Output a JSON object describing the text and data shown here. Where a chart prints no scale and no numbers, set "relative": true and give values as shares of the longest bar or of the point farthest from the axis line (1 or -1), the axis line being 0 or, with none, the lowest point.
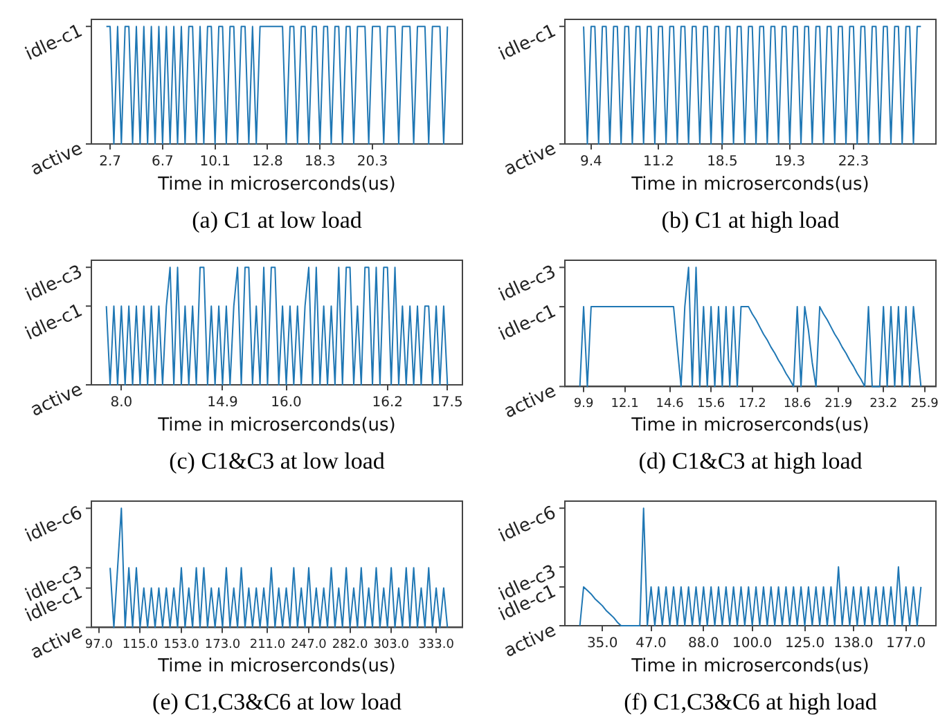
{
  "chart_data": [
    {
      "type": "line",
      "relative": true,
      "title": "(a) C1 at low load",
      "xlabel": "Time in microserconds(us)",
      "color": "#1f77b4",
      "annotations": [
        "active",
        "idle-c1"
      ],
      "categories": [
        null,
        null,
        null,
        null,
        null,
        "2.7",
        null,
        null,
        null,
        null,
        null,
        null,
        null,
        null,
        null,
        null,
        null,
        null,
        null,
        "6.7",
        null,
        null,
        null,
        null,
        null,
        null,
        null,
        null,
        null,
        null,
        null,
        null,
        null,
        "10.1",
        null,
        null,
        null,
        null,
        null,
        null,
        null,
        null,
        null,
        null,
        null,
        null,
        null,
        "12.8",
        null,
        null,
        null,
        null,
        null,
        null,
        null,
        null,
        null,
        null,
        null,
        null,
        null,
        "18.3",
        null,
        null,
        null,
        null,
        null,
        null,
        null,
        null,
        null,
        null,
        null,
        null,
        null,
        "20.3",
        null,
        null,
        null,
        null,
        null,
        null,
        null,
        null,
        null,
        null,
        null,
        null,
        null,
        null,
        null,
        null,
        null,
        null,
        null,
        null,
        null,
        null,
        null,
        null
      ],
      "values": [
        null,
        null,
        null,
        null,
        1,
        1,
        0,
        1,
        0,
        1,
        1,
        0,
        1,
        0,
        1,
        0,
        1,
        0,
        1,
        0,
        1,
        0,
        1,
        0,
        1,
        0,
        1,
        1,
        0,
        1,
        0,
        1,
        1,
        0,
        1,
        1,
        0,
        1,
        1,
        0,
        1,
        1,
        0,
        1,
        0,
        1,
        1,
        1,
        1,
        1,
        1,
        1,
        0,
        1,
        1,
        0,
        1,
        1,
        0,
        1,
        1,
        0,
        1,
        1,
        0,
        1,
        1,
        0,
        1,
        1,
        0,
        1,
        1,
        1,
        0,
        1,
        1,
        1,
        0,
        1,
        1,
        1,
        0,
        1,
        1,
        1,
        0,
        1,
        1,
        1,
        0,
        1,
        1,
        1,
        0,
        1,
        null,
        null,
        null,
        null
      ]
    },
    {
      "type": "line",
      "relative": true,
      "title": "(b) C1 at high load",
      "xlabel": "Time in microserconds(us)",
      "color": "#1f77b4",
      "annotations": [
        "active",
        "idle-c1"
      ],
      "categories": [
        null,
        null,
        null,
        null,
        null,
        null,
        null,
        "9.4",
        null,
        null,
        null,
        null,
        null,
        null,
        null,
        null,
        null,
        null,
        null,
        null,
        null,
        null,
        null,
        null,
        null,
        "11.2",
        null,
        null,
        null,
        null,
        null,
        null,
        null,
        null,
        null,
        null,
        null,
        null,
        null,
        null,
        null,
        null,
        "18.5",
        null,
        null,
        null,
        null,
        null,
        null,
        null,
        null,
        null,
        null,
        null,
        null,
        null,
        null,
        null,
        null,
        null,
        "19.3",
        null,
        null,
        null,
        null,
        null,
        null,
        null,
        null,
        null,
        null,
        null,
        null,
        null,
        null,
        null,
        null,
        "22.3",
        null,
        null,
        null,
        null,
        null,
        null,
        null,
        null,
        null,
        null,
        null,
        null,
        null,
        null,
        null,
        null,
        null,
        null,
        null,
        null,
        null,
        null
      ],
      "values": [
        null,
        null,
        null,
        null,
        null,
        1,
        0,
        1,
        1,
        0,
        1,
        1,
        0,
        1,
        1,
        0,
        1,
        1,
        0,
        1,
        1,
        0,
        1,
        1,
        0,
        1,
        1,
        0,
        1,
        1,
        0,
        1,
        1,
        0,
        1,
        1,
        0,
        1,
        1,
        0,
        1,
        1,
        0,
        1,
        1,
        0,
        1,
        1,
        0,
        1,
        1,
        0,
        1,
        1,
        0,
        1,
        1,
        0,
        1,
        1,
        0,
        1,
        1,
        0,
        1,
        1,
        0,
        1,
        1,
        0,
        1,
        1,
        0,
        1,
        1,
        0,
        1,
        1,
        0,
        1,
        1,
        0,
        1,
        1,
        0,
        1,
        1,
        0,
        1,
        1,
        0,
        1,
        1,
        0,
        1,
        1,
        null,
        null,
        null,
        null
      ]
    },
    {
      "type": "line",
      "relative": true,
      "title": "(c) C1&C3 at low load",
      "xlabel": "Time in microserconds(us)",
      "color": "#1f77b4",
      "annotations": [
        "active",
        "idle-c1",
        "idle-c3"
      ],
      "categories": [
        null,
        null,
        null,
        null,
        null,
        null,
        null,
        null,
        "8.0",
        null,
        null,
        null,
        null,
        null,
        null,
        null,
        null,
        null,
        null,
        null,
        null,
        null,
        null,
        null,
        null,
        null,
        null,
        null,
        null,
        null,
        null,
        null,
        null,
        null,
        null,
        "14.9",
        null,
        null,
        null,
        null,
        null,
        null,
        null,
        null,
        null,
        null,
        null,
        null,
        null,
        null,
        null,
        null,
        "16.0",
        null,
        null,
        null,
        null,
        null,
        null,
        null,
        null,
        null,
        null,
        null,
        null,
        null,
        null,
        null,
        null,
        null,
        null,
        null,
        null,
        null,
        null,
        null,
        null,
        null,
        null,
        "16.2",
        null,
        null,
        null,
        null,
        null,
        null,
        null,
        null,
        null,
        null,
        null,
        null,
        null,
        null,
        null,
        "17.5",
        null,
        null,
        null,
        null
      ],
      "values": [
        null,
        null,
        null,
        null,
        0.67,
        0,
        0.67,
        0,
        0.67,
        0,
        0.67,
        0,
        0.67,
        0,
        0.67,
        0,
        0.67,
        0,
        0.67,
        0,
        0.67,
        1,
        0,
        1,
        0,
        0.67,
        0,
        0.67,
        0,
        1,
        1,
        0,
        0.67,
        0,
        0.67,
        0,
        0.67,
        0,
        0.67,
        1,
        0,
        1,
        1,
        0,
        0.67,
        0,
        1,
        0,
        1,
        1,
        0,
        0.67,
        0,
        0.67,
        0,
        0.67,
        0,
        0.67,
        1,
        0,
        1,
        0,
        0.67,
        0,
        0.67,
        0,
        1,
        0,
        1,
        1,
        0,
        0.67,
        0,
        1,
        1,
        0,
        1,
        0,
        1,
        1,
        0,
        1,
        0,
        0.67,
        0,
        0.67,
        0,
        0.67,
        0,
        0.67,
        0.67,
        0,
        0.67,
        0,
        0.67,
        0,
        null,
        null,
        null,
        null
      ]
    },
    {
      "type": "line",
      "relative": true,
      "title": "(d) C1&C3 at high load",
      "xlabel": "Time in microserconds(us)",
      "color": "#1f77b4",
      "annotations": [
        "active",
        "idle-c1",
        "idle-c3"
      ],
      "categories": [
        null,
        null,
        null,
        null,
        null,
        "9.9",
        null,
        null,
        null,
        null,
        null,
        null,
        null,
        null,
        null,
        null,
        "12.1",
        null,
        null,
        null,
        null,
        null,
        null,
        null,
        null,
        null,
        null,
        null,
        "14.6",
        null,
        null,
        null,
        null,
        null,
        null,
        null,
        null,
        null,
        null,
        "15.6",
        null,
        null,
        null,
        null,
        null,
        null,
        null,
        null,
        null,
        null,
        "17.2",
        null,
        null,
        null,
        null,
        null,
        null,
        null,
        null,
        null,
        null,
        null,
        "18.6",
        null,
        null,
        null,
        null,
        null,
        null,
        null,
        null,
        null,
        null,
        "21.9",
        null,
        null,
        null,
        null,
        null,
        null,
        null,
        null,
        null,
        null,
        null,
        "23.2",
        null,
        null,
        null,
        null,
        null,
        null,
        null,
        null,
        null,
        null,
        "25.9",
        null,
        null,
        null
      ],
      "values": [
        null,
        null,
        null,
        null,
        0,
        0.67,
        0,
        0.67,
        0.67,
        0.67,
        0.67,
        0.67,
        0.67,
        0.67,
        0.67,
        0.67,
        0.67,
        0.67,
        0.67,
        0.67,
        0.67,
        0.67,
        0.67,
        0.67,
        0.67,
        0.67,
        0.67,
        0.67,
        0.67,
        0.67,
        0.33,
        0,
        0.67,
        1,
        0,
        1,
        0,
        0.67,
        0,
        0.67,
        0,
        0.67,
        0,
        0.67,
        0,
        0.67,
        0,
        0.67,
        0.67,
        0.67,
        0.61,
        0.56,
        0.5,
        0.44,
        0.39,
        0.33,
        0.28,
        0.22,
        0.17,
        0.11,
        0.06,
        0,
        0.67,
        0,
        0.67,
        0.47,
        0.2,
        0,
        0.67,
        0.61,
        0.56,
        0.5,
        0.44,
        0.39,
        0.33,
        0.28,
        0.22,
        0.17,
        0.11,
        0.06,
        0,
        0.67,
        0,
        0,
        0,
        0.67,
        0,
        0.67,
        0,
        0.67,
        0,
        0.67,
        0,
        0.67,
        0.33,
        0,
        null,
        null,
        null,
        null
      ]
    },
    {
      "type": "line",
      "relative": true,
      "title": "(e) C1,C3&C6 at low load",
      "xlabel": "Time in microserconds(us)",
      "color": "#1f77b4",
      "annotations": [
        "active",
        "idle-c1",
        "idle-c3",
        "idle-c6"
      ],
      "categories": [
        null,
        null,
        "97.0",
        null,
        null,
        null,
        null,
        null,
        null,
        null,
        null,
        null,
        null,
        "115.0",
        null,
        null,
        null,
        null,
        null,
        null,
        null,
        null,
        null,
        null,
        "153.0",
        null,
        null,
        null,
        null,
        null,
        null,
        null,
        null,
        null,
        null,
        "173.0",
        null,
        null,
        null,
        null,
        null,
        null,
        null,
        null,
        null,
        null,
        null,
        "211.0",
        null,
        null,
        null,
        null,
        null,
        null,
        null,
        null,
        null,
        null,
        "247.0",
        null,
        null,
        null,
        null,
        null,
        null,
        null,
        null,
        null,
        null,
        "282.0",
        null,
        null,
        null,
        null,
        null,
        null,
        null,
        null,
        null,
        null,
        "303.0",
        null,
        null,
        null,
        null,
        null,
        null,
        null,
        null,
        null,
        null,
        null,
        "333.0",
        null,
        null,
        null,
        null,
        null,
        null,
        null
      ],
      "values": [
        null,
        null,
        null,
        null,
        null,
        0.5,
        0,
        0.5,
        1,
        0,
        0.5,
        0,
        0.5,
        0,
        0.33,
        0,
        0.33,
        0,
        0.33,
        0,
        0.33,
        0,
        0.33,
        0,
        0.5,
        0,
        0.33,
        0,
        0.5,
        0,
        0.5,
        0,
        0.33,
        0,
        0.33,
        0,
        0.5,
        0,
        0.33,
        0,
        0.5,
        0,
        0.33,
        0,
        0.33,
        0,
        0.33,
        0,
        0.5,
        0,
        0.33,
        0,
        0.33,
        0,
        0.5,
        0,
        0.33,
        0,
        0.5,
        0,
        0.33,
        0,
        0.33,
        0,
        0.5,
        0,
        0.33,
        0,
        0.5,
        0,
        0.33,
        0,
        0.5,
        0,
        0.33,
        0,
        0.5,
        0,
        0.33,
        0,
        0.5,
        0,
        0.33,
        0,
        0.5,
        0,
        0.5,
        0,
        0.33,
        0,
        0.5,
        0,
        0.33,
        0,
        0.33,
        0,
        null,
        null,
        null,
        null
      ]
    },
    {
      "type": "line",
      "relative": true,
      "title": "(f) C1,C3&C6 at high load",
      "xlabel": "Time in microserconds(us)",
      "color": "#1f77b4",
      "annotations": [
        "active",
        "idle-c1",
        "idle-c3",
        "idle-c6"
      ],
      "categories": [
        null,
        null,
        null,
        null,
        null,
        null,
        null,
        null,
        null,
        null,
        "35.0",
        null,
        null,
        null,
        null,
        null,
        null,
        null,
        null,
        null,
        null,
        null,
        null,
        "47.0",
        null,
        null,
        null,
        null,
        null,
        null,
        null,
        null,
        null,
        null,
        null,
        null,
        null,
        "88.0",
        null,
        null,
        null,
        null,
        null,
        null,
        null,
        null,
        null,
        null,
        null,
        null,
        "100.0",
        null,
        null,
        null,
        null,
        null,
        null,
        null,
        null,
        null,
        null,
        null,
        null,
        null,
        "125.0",
        null,
        null,
        null,
        null,
        null,
        null,
        null,
        null,
        null,
        null,
        null,
        null,
        "138.0",
        null,
        null,
        null,
        null,
        null,
        null,
        null,
        null,
        null,
        null,
        null,
        null,
        null,
        "177.0",
        null,
        null,
        null,
        null,
        null,
        null,
        null,
        null
      ],
      "values": [
        null,
        null,
        null,
        null,
        0,
        0.33,
        0.3,
        0.27,
        0.23,
        0.2,
        0.17,
        0.13,
        0.1,
        0.07,
        0.03,
        0,
        0,
        0,
        0,
        0,
        0,
        1,
        0,
        0.33,
        0,
        0.33,
        0,
        0.33,
        0,
        0.33,
        0,
        0.33,
        0,
        0.33,
        0,
        0.33,
        0,
        0.33,
        0,
        0.33,
        0,
        0.33,
        0,
        0.33,
        0,
        0.33,
        0,
        0.33,
        0,
        0.33,
        0,
        0.33,
        0,
        0.33,
        0,
        0.33,
        0,
        0.33,
        0,
        0.33,
        0,
        0.33,
        0,
        0.33,
        0,
        0.33,
        0,
        0.33,
        0,
        0.33,
        0,
        0.33,
        0,
        0.5,
        0,
        0.33,
        0,
        0.33,
        0,
        0.33,
        0,
        0.33,
        0,
        0.33,
        0,
        0.33,
        0,
        0.33,
        0,
        0.5,
        0,
        0.33,
        0,
        0.33,
        0,
        0.33,
        null,
        null,
        null,
        null
      ]
    }
  ]
}
